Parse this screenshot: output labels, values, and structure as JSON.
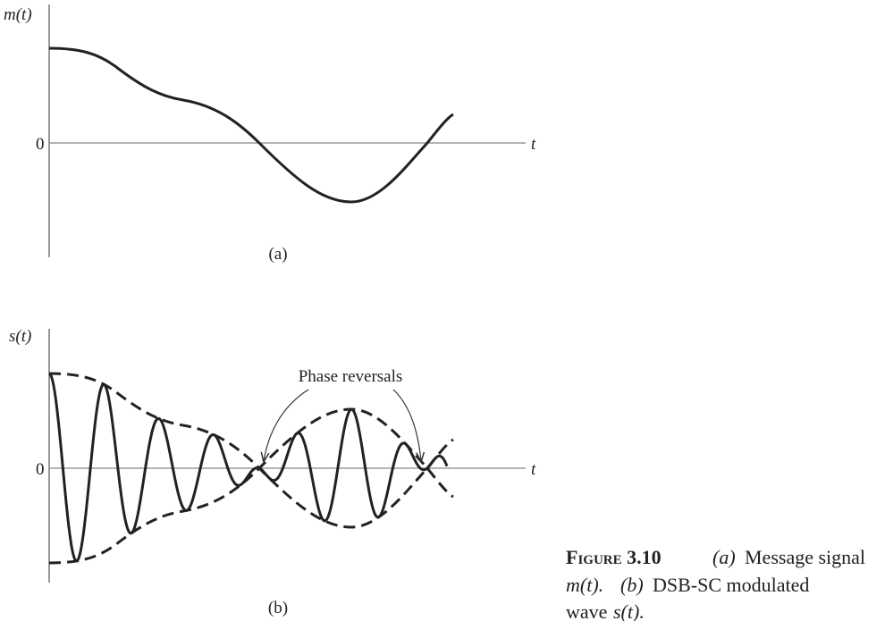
{
  "panel_a": {
    "y_label": "m(t)",
    "zero": "0",
    "x_label": "t",
    "caption": "(a)"
  },
  "panel_b": {
    "y_label": "s(t)",
    "zero": "0",
    "x_label": "t",
    "annotation": "Phase reversals",
    "caption": "(b)"
  },
  "figure_caption": {
    "label": "Figure 3.10",
    "part_a": "(a)",
    "text_a": "Message signal",
    "signal_a": "m(t).",
    "part_b": "(b)",
    "text_b": "DSB-SC modulated",
    "text_c": "wave",
    "signal_b": "s(t)."
  }
}
